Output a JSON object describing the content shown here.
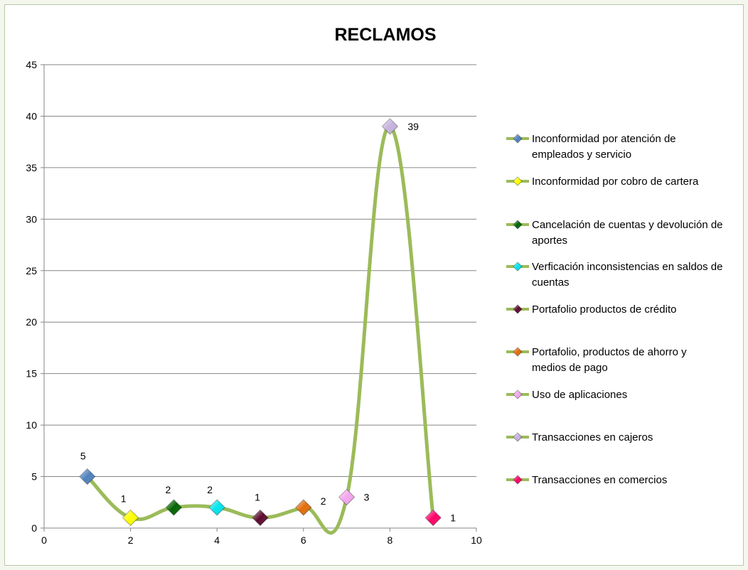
{
  "chart_data": {
    "type": "line",
    "title": "RECLAMOS",
    "xlabel": "",
    "ylabel": "",
    "xlim": [
      0,
      10
    ],
    "ylim": [
      0,
      45
    ],
    "x_ticks": [
      "0",
      "2",
      "4",
      "6",
      "8",
      "10"
    ],
    "y_ticks": [
      "0",
      "5",
      "10",
      "15",
      "20",
      "25",
      "30",
      "35",
      "40",
      "45"
    ],
    "x_tick_values": [
      0,
      2,
      4,
      6,
      8,
      10
    ],
    "y_tick_values": [
      0,
      5,
      10,
      15,
      20,
      25,
      30,
      35,
      40,
      45
    ],
    "grid": "horizontal",
    "smooth": true,
    "line_color": "#9bbb59",
    "legend_position": "right",
    "series": [
      {
        "name": "Inconformidad por atención de empleados y servicio",
        "legend_lines": [
          "Inconformidad por atención de",
          "empleados y servicio"
        ],
        "x": 1,
        "y": 5,
        "label": "5",
        "color": "#4f81bd"
      },
      {
        "name": "Inconformidad por cobro de cartera",
        "legend_lines": [
          "Inconformidad por cobro de cartera"
        ],
        "x": 2,
        "y": 1,
        "label": "1",
        "color": "#ffff00"
      },
      {
        "name": "Cancelación de cuentas y devolución de aportes",
        "legend_lines": [
          "Cancelación de cuentas y devolución de",
          "aportes"
        ],
        "x": 3,
        "y": 2,
        "label": "2",
        "color": "#006400"
      },
      {
        "name": "Verficación inconsistencias en saldos de cuentas",
        "legend_lines": [
          "Verficación inconsistencias en saldos de",
          "cuentas"
        ],
        "x": 4,
        "y": 2,
        "label": "2",
        "color": "#00e5ee"
      },
      {
        "name": "Portafolio productos de crédito",
        "legend_lines": [
          "Portafolio productos de crédito"
        ],
        "x": 5,
        "y": 1,
        "label": "1",
        "color": "#5c0a2e"
      },
      {
        "name": "Portafolio, productos de ahorro y medios de pago",
        "legend_lines": [
          "Portafolio, productos de ahorro y",
          "medios de pago"
        ],
        "x": 6,
        "y": 2,
        "label": "2",
        "color": "#e36c09"
      },
      {
        "name": "Uso de aplicaciones",
        "legend_lines": [
          "Uso de aplicaciones"
        ],
        "x": 7,
        "y": 3,
        "label": "3",
        "color": "#f4a6ee"
      },
      {
        "name": "Transacciones en cajeros",
        "legend_lines": [
          "Transacciones en cajeros"
        ],
        "x": 8,
        "y": 39,
        "label": "39",
        "color": "#c6b3dd"
      },
      {
        "name": "Transacciones en comercios",
        "legend_lines": [
          "Transacciones en comercios"
        ],
        "x": 9,
        "y": 1,
        "label": "1",
        "color": "#ff0066"
      }
    ]
  }
}
